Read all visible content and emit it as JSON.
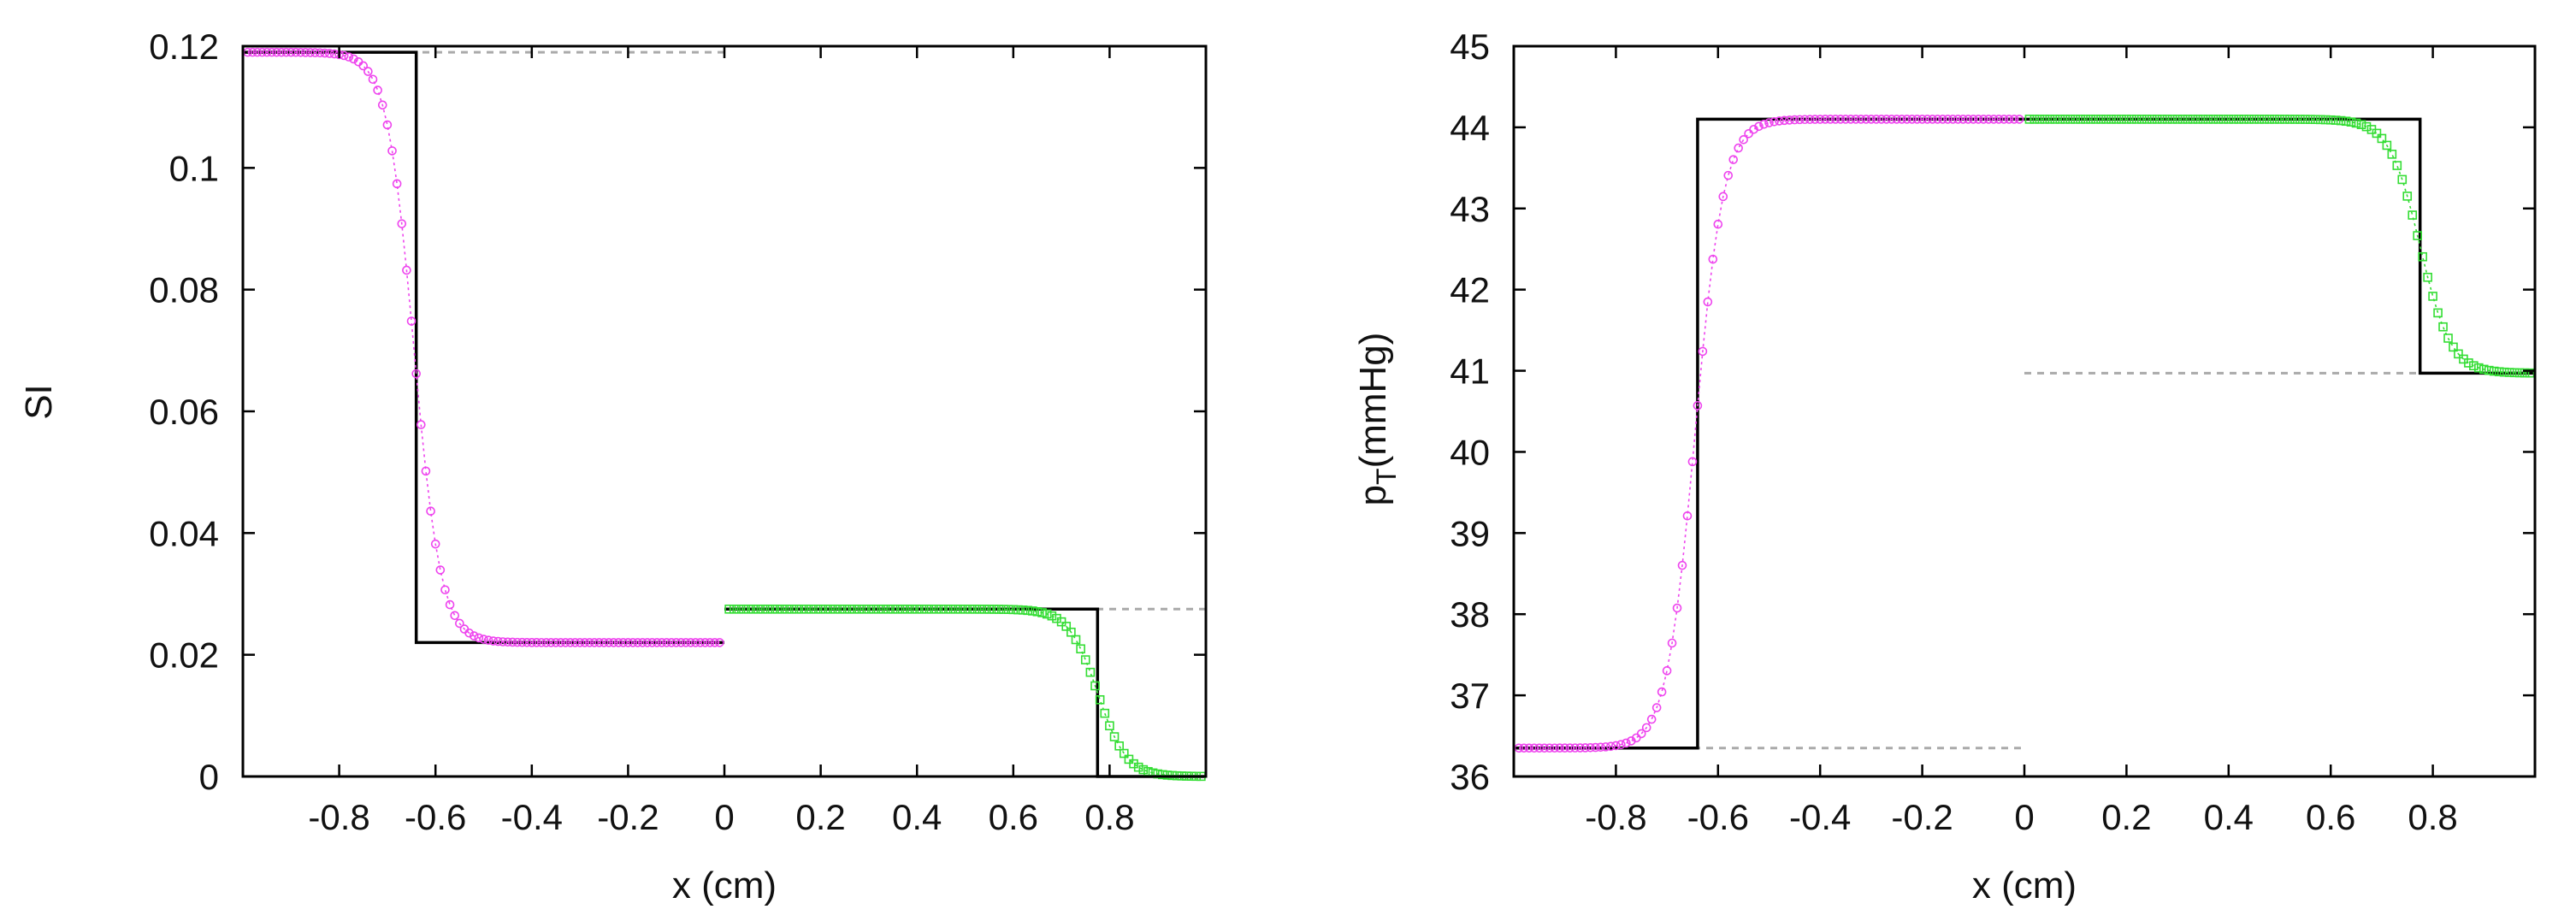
{
  "chart_data": [
    {
      "type": "line",
      "xlabel": "x (cm)",
      "ylabel": "SI",
      "xlim": [
        -1.0,
        1.0
      ],
      "ylim": [
        0,
        0.12
      ],
      "xticks": [
        -0.8,
        -0.6,
        -0.4,
        -0.2,
        0,
        0.2,
        0.4,
        0.6,
        0.8
      ],
      "yticks": [
        0,
        0.02,
        0.04,
        0.06,
        0.08,
        0.1,
        0.12
      ],
      "xtick_labels": [
        "-0.8",
        "-0.6",
        "-0.4",
        "-0.2",
        "0",
        "0.2",
        "0.4",
        "0.6",
        "0.8"
      ],
      "ytick_labels": [
        "0",
        "0.02",
        "0.04",
        "0.06",
        "0.08",
        "0.1",
        "0.12"
      ],
      "grid": false,
      "legend": "none",
      "exact_left": {
        "x": [
          -1.0,
          -0.64,
          -0.64,
          0.0
        ],
        "y": [
          0.119,
          0.119,
          0.022,
          0.022
        ],
        "color": "#000000"
      },
      "exact_right": {
        "x": [
          0.0,
          0.775,
          0.775,
          1.0
        ],
        "y": [
          0.0275,
          0.0275,
          0.0,
          0.0
        ],
        "color": "#000000"
      },
      "initial_guides": [
        {
          "x": [
            -1.0,
            0.0
          ],
          "y": [
            0.119,
            0.119
          ],
          "color": "#aaaaaa"
        },
        {
          "x": [
            0.0,
            1.0
          ],
          "y": [
            0.0275,
            0.0275
          ],
          "color": "#aaaaaa"
        }
      ],
      "series": [
        {
          "marker": "circle",
          "color": "#ee44ee",
          "x_range": [
            -0.99,
            -0.01
          ],
          "n": 99,
          "transition": {
            "center": -0.645,
            "width": 0.028,
            "left_value": 0.119,
            "right_value": 0.022
          }
        },
        {
          "marker": "square",
          "color": "#33dd33",
          "x_range": [
            0.01,
            0.99
          ],
          "n": 99,
          "transition": {
            "center": 0.775,
            "width": 0.03,
            "left_value": 0.0275,
            "right_value": 0.0
          }
        }
      ]
    },
    {
      "type": "line",
      "xlabel": "x (cm)",
      "ylabel": "p",
      "ylabel_sub": "T",
      "ylabel_unit": "(mmHg)",
      "xlim": [
        -1.0,
        1.0
      ],
      "ylim": [
        36,
        45
      ],
      "xticks": [
        -0.8,
        -0.6,
        -0.4,
        -0.2,
        0,
        0.2,
        0.4,
        0.6,
        0.8
      ],
      "yticks": [
        36,
        37,
        38,
        39,
        40,
        41,
        42,
        43,
        44,
        45
      ],
      "xtick_labels": [
        "-0.8",
        "-0.6",
        "-0.4",
        "-0.2",
        "0",
        "0.2",
        "0.4",
        "0.6",
        "0.8"
      ],
      "ytick_labels": [
        "36",
        "37",
        "38",
        "39",
        "40",
        "41",
        "42",
        "43",
        "44",
        "45"
      ],
      "grid": false,
      "legend": "none",
      "exact_left": {
        "x": [
          -1.0,
          -0.64,
          -0.64,
          0.0
        ],
        "y": [
          36.35,
          36.35,
          44.1,
          44.1
        ],
        "color": "#000000"
      },
      "exact_right": {
        "x": [
          0.0,
          0.775,
          0.775,
          1.0
        ],
        "y": [
          44.1,
          44.1,
          40.97,
          40.97
        ],
        "color": "#000000"
      },
      "initial_guides": [
        {
          "x": [
            -1.0,
            0.0
          ],
          "y": [
            36.35,
            36.35
          ],
          "color": "#aaaaaa"
        },
        {
          "x": [
            0.0,
            1.0
          ],
          "y": [
            40.97,
            40.97
          ],
          "color": "#aaaaaa"
        }
      ],
      "series": [
        {
          "marker": "circle",
          "color": "#ee44ee",
          "x_range": [
            -0.99,
            -0.01
          ],
          "n": 99,
          "transition": {
            "center": -0.645,
            "width": 0.028,
            "left_value": 36.35,
            "right_value": 44.1
          }
        },
        {
          "marker": "square",
          "color": "#33dd33",
          "x_range": [
            0.01,
            0.99
          ],
          "n": 99,
          "transition": {
            "center": 0.775,
            "width": 0.03,
            "left_value": 44.1,
            "right_value": 40.97
          }
        }
      ]
    }
  ]
}
